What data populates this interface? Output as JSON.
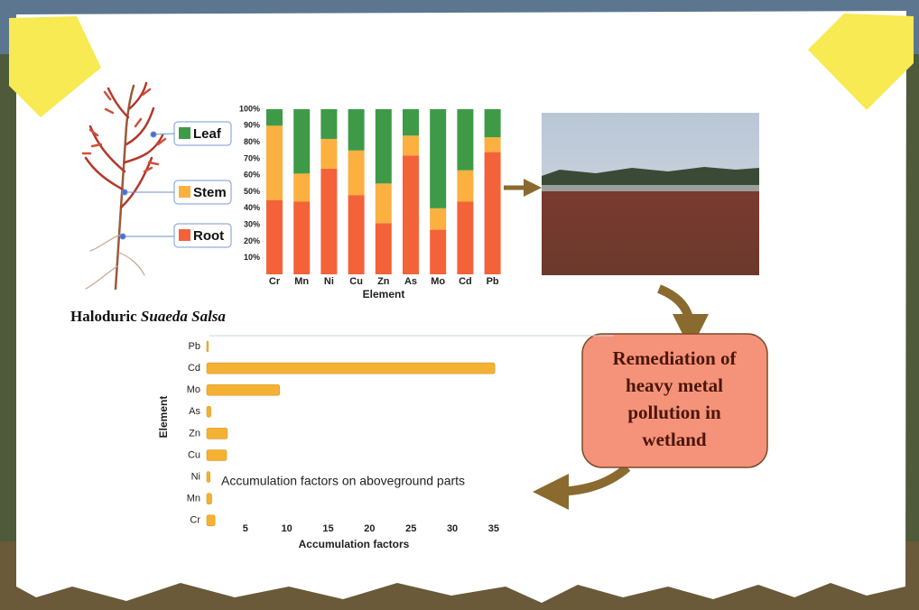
{
  "chart_data": [
    {
      "type": "stacked_bar",
      "categories": [
        "Cr",
        "Mn",
        "Ni",
        "Cu",
        "Zn",
        "As",
        "Mo",
        "Cd",
        "Pb"
      ],
      "series": [
        {
          "name": "Root",
          "color": "#f4623a",
          "values": [
            45,
            44,
            64,
            48,
            31,
            72,
            27,
            44,
            74
          ]
        },
        {
          "name": "Stem",
          "color": "#fbb040",
          "values": [
            45,
            17,
            18,
            27,
            24,
            12,
            13,
            19,
            9
          ]
        },
        {
          "name": "Leaf",
          "color": "#3f9a48",
          "values": [
            10,
            39,
            18,
            25,
            45,
            16,
            60,
            37,
            17
          ]
        }
      ],
      "ylim": [
        0,
        100
      ],
      "yticks": [
        {
          "value": 10,
          "label": "10%"
        },
        {
          "value": 20,
          "label": "20%"
        },
        {
          "value": 30,
          "label": "30%"
        },
        {
          "value": 40,
          "label": "40%"
        },
        {
          "value": 50,
          "label": "50%"
        },
        {
          "value": 60,
          "label": "60%"
        },
        {
          "value": 70,
          "label": "70%"
        },
        {
          "value": 80,
          "label": "80%"
        },
        {
          "value": 90,
          "label": "90%"
        },
        {
          "value": 100,
          "label": "100%"
        }
      ],
      "x_label": "Element"
    },
    {
      "type": "horizontal_bar",
      "categories": [
        "Pb",
        "Cd",
        "Mo",
        "As",
        "Zn",
        "Cu",
        "Ni",
        "Mn",
        "Cr"
      ],
      "values": [
        0.2,
        34.8,
        8.8,
        0.5,
        2.5,
        2.4,
        0.4,
        0.6,
        1.0
      ],
      "color": "#f4b133",
      "xlim": [
        0,
        35.5
      ],
      "xticks": [
        5,
        10,
        15,
        20,
        25,
        30,
        35
      ],
      "x_label": "Accumulation factors",
      "y_label": "Element",
      "annotation": "Accumulation factors on aboveground parts"
    }
  ],
  "diagram": {
    "plant_label": {
      "prefix": "Haloduric",
      "species": "Suaeda Salsa"
    },
    "remediation": [
      "Remediation of",
      "heavy metal",
      "pollution in",
      "wetland"
    ]
  }
}
